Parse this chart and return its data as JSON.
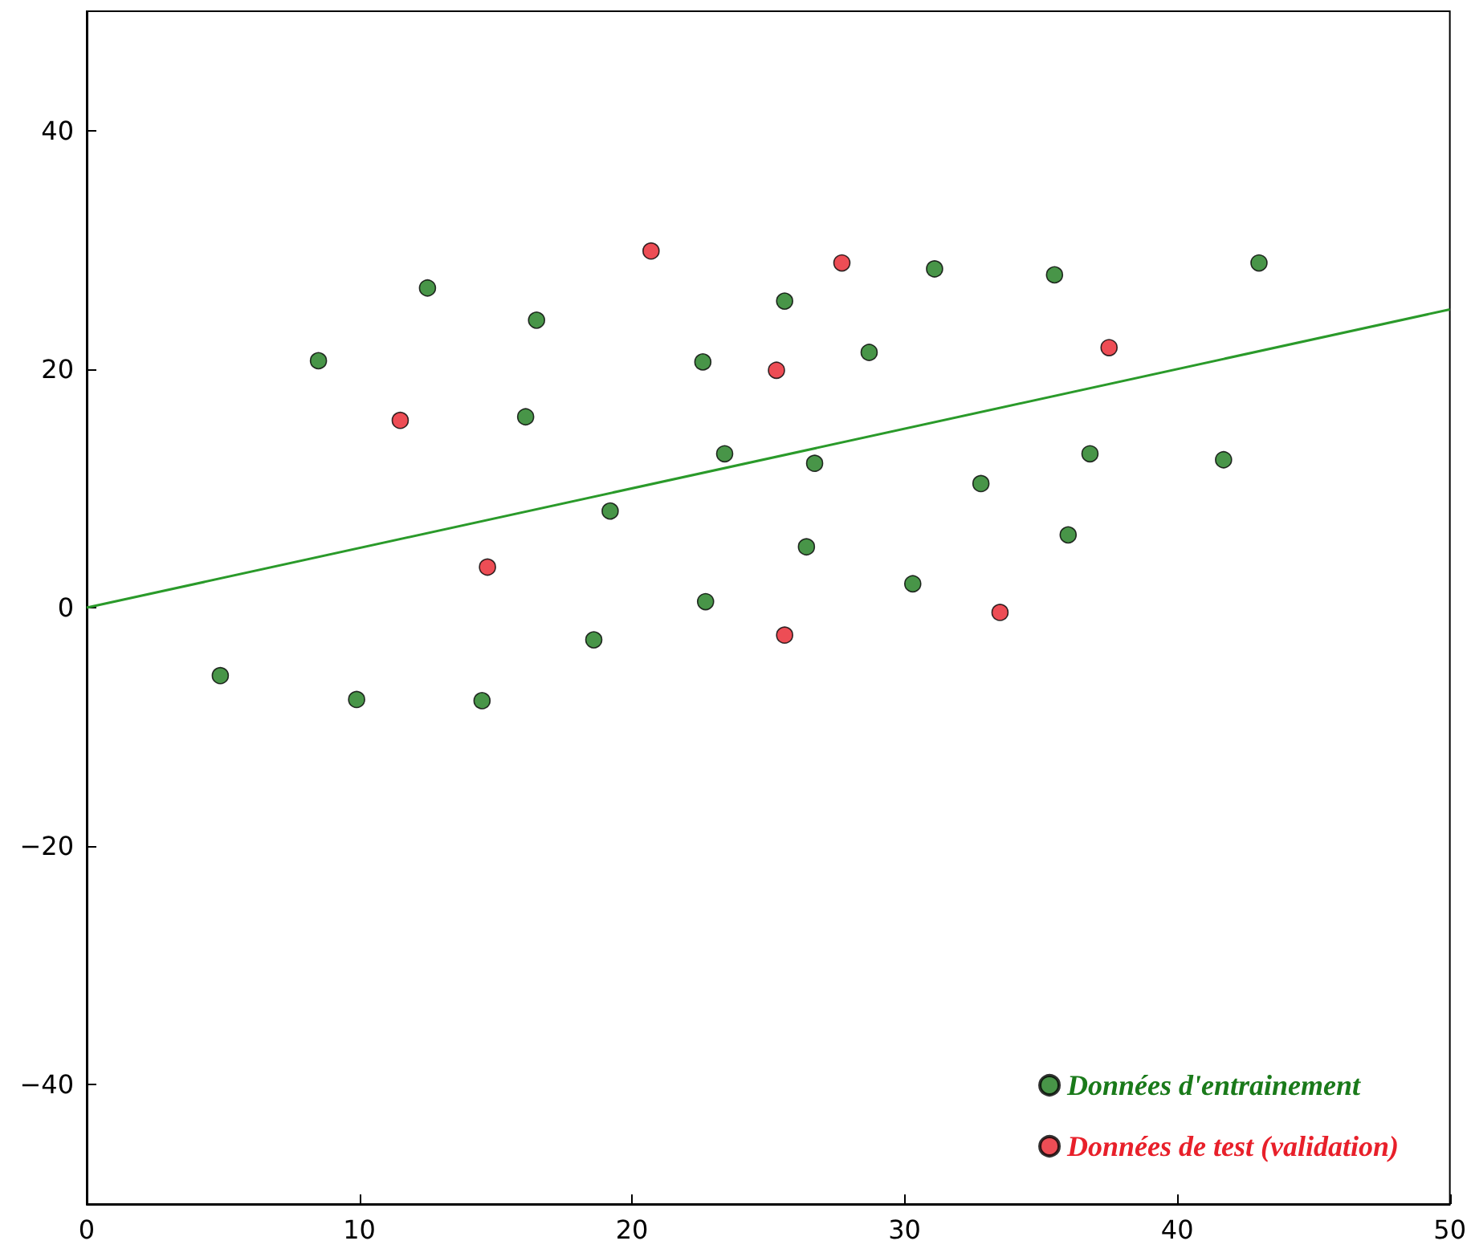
{
  "chart_data": {
    "type": "scatter",
    "xlim": [
      0,
      50
    ],
    "ylim": [
      -50,
      50
    ],
    "xticks": [
      0,
      10,
      20,
      30,
      40,
      50
    ],
    "yticks": [
      {
        "value": -40,
        "label": "−40"
      },
      {
        "value": -20,
        "label": "−20"
      },
      0,
      20,
      40
    ],
    "legend": "bottom right",
    "grid": false,
    "marker": "circle",
    "series": [
      {
        "name": "Données d'entrainement",
        "color": "#1a7a1a",
        "x": [
          4.9,
          8.5,
          9.9,
          12.5,
          14.5,
          16.1,
          16.5,
          18.6,
          19.2,
          22.6,
          22.7,
          23.4,
          25.6,
          26.4,
          26.7,
          28.7,
          30.3,
          31.1,
          32.8,
          35.5,
          36.0,
          36.8,
          41.7,
          43.0
        ],
        "values": [
          -5.7,
          20.7,
          -7.7,
          26.8,
          -7.8,
          16.0,
          24.1,
          -2.7,
          8.1,
          20.6,
          0.5,
          12.9,
          25.7,
          5.1,
          12.1,
          21.4,
          2.0,
          28.4,
          10.4,
          27.9,
          6.1,
          12.9,
          12.4,
          28.9
        ]
      },
      {
        "name": "Données de test (validation)",
        "color": "#e8202a",
        "x": [
          11.5,
          14.7,
          20.7,
          25.3,
          25.6,
          27.7,
          33.5,
          37.5
        ],
        "values": [
          15.7,
          3.4,
          29.9,
          19.9,
          -2.3,
          28.9,
          -0.4,
          21.8
        ]
      },
      {
        "type": "line",
        "marker": "none",
        "color": "#2a9a2a",
        "x": [
          0,
          50
        ],
        "values": [
          0,
          25
        ]
      }
    ]
  }
}
